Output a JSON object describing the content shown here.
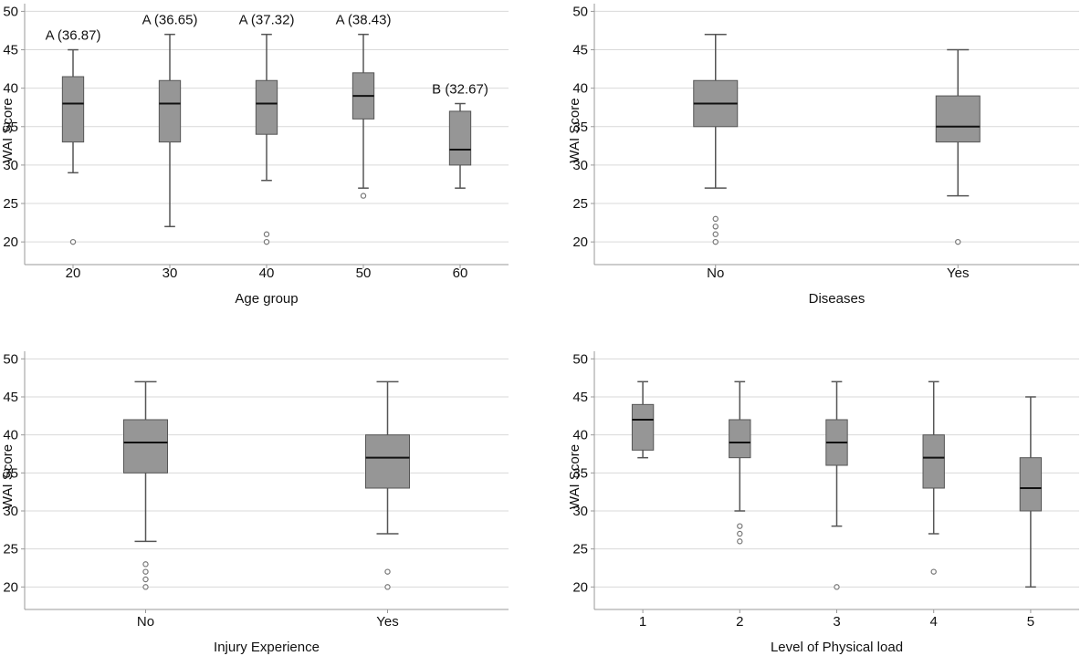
{
  "colors": {
    "box_fill": "#969696",
    "box_stroke": "#555555",
    "median": "#111111",
    "grid": "#d9d9d9",
    "axis": "#999999",
    "outlier": "#777777"
  },
  "chart_data": [
    {
      "type": "box",
      "ylabel": "WAI Score",
      "xlabel": "Age group",
      "ylim": [
        18,
        51
      ],
      "yticks": [
        20,
        25,
        30,
        35,
        40,
        45,
        50
      ],
      "grid": true,
      "categories": [
        "20",
        "30",
        "40",
        "50",
        "60"
      ],
      "boxes": [
        {
          "whisker_low": 29,
          "q1": 33,
          "median": 38,
          "q3": 41.5,
          "whisker_high": 45,
          "outliers": [
            20
          ],
          "annotation": "A (36.87)"
        },
        {
          "whisker_low": 22,
          "q1": 33,
          "median": 38,
          "q3": 41,
          "whisker_high": 47,
          "outliers": [],
          "annotation": "A (36.65)"
        },
        {
          "whisker_low": 28,
          "q1": 34,
          "median": 38,
          "q3": 41,
          "whisker_high": 47,
          "outliers": [
            20,
            21
          ],
          "annotation": "A (37.32)"
        },
        {
          "whisker_low": 27,
          "q1": 36,
          "median": 39,
          "q3": 42,
          "whisker_high": 47,
          "outliers": [
            26
          ],
          "annotation": "A (38.43)"
        },
        {
          "whisker_low": 27,
          "q1": 30,
          "median": 32,
          "q3": 37,
          "whisker_high": 38,
          "outliers": [],
          "annotation": "B (32.67)"
        }
      ]
    },
    {
      "type": "box",
      "ylabel": "WAI Score",
      "xlabel": "Diseases",
      "ylim": [
        18,
        51
      ],
      "yticks": [
        20,
        25,
        30,
        35,
        40,
        45,
        50
      ],
      "grid": true,
      "categories": [
        "No",
        "Yes"
      ],
      "boxes": [
        {
          "whisker_low": 27,
          "q1": 35,
          "median": 38,
          "q3": 41,
          "whisker_high": 47,
          "outliers": [
            20,
            21,
            22,
            23
          ]
        },
        {
          "whisker_low": 26,
          "q1": 33,
          "median": 35,
          "q3": 39,
          "whisker_high": 45,
          "outliers": [
            20
          ]
        }
      ]
    },
    {
      "type": "box",
      "ylabel": "WAI Score",
      "xlabel": "Injury Experience",
      "ylim": [
        18,
        51
      ],
      "yticks": [
        20,
        25,
        30,
        35,
        40,
        45,
        50
      ],
      "grid": true,
      "categories": [
        "No",
        "Yes"
      ],
      "boxes": [
        {
          "whisker_low": 26,
          "q1": 35,
          "median": 39,
          "q3": 42,
          "whisker_high": 47,
          "outliers": [
            20,
            21,
            22,
            23
          ]
        },
        {
          "whisker_low": 27,
          "q1": 33,
          "median": 37,
          "q3": 40,
          "whisker_high": 47,
          "outliers": [
            20,
            22
          ]
        }
      ]
    },
    {
      "type": "box",
      "ylabel": "WAI Score",
      "xlabel": "Level of Physical load",
      "ylim": [
        18,
        51
      ],
      "yticks": [
        20,
        25,
        30,
        35,
        40,
        45,
        50
      ],
      "grid": true,
      "categories": [
        "1",
        "2",
        "3",
        "4",
        "5"
      ],
      "boxes": [
        {
          "whisker_low": 37,
          "q1": 38,
          "median": 42,
          "q3": 44,
          "whisker_high": 47,
          "outliers": []
        },
        {
          "whisker_low": 30,
          "q1": 37,
          "median": 39,
          "q3": 42,
          "whisker_high": 47,
          "outliers": [
            26,
            27,
            28
          ]
        },
        {
          "whisker_low": 28,
          "q1": 36,
          "median": 39,
          "q3": 42,
          "whisker_high": 47,
          "outliers": [
            20
          ]
        },
        {
          "whisker_low": 27,
          "q1": 33,
          "median": 37,
          "q3": 40,
          "whisker_high": 47,
          "outliers": [
            22
          ]
        },
        {
          "whisker_low": 20,
          "q1": 30,
          "median": 33,
          "q3": 37,
          "whisker_high": 45,
          "outliers": []
        }
      ]
    }
  ]
}
